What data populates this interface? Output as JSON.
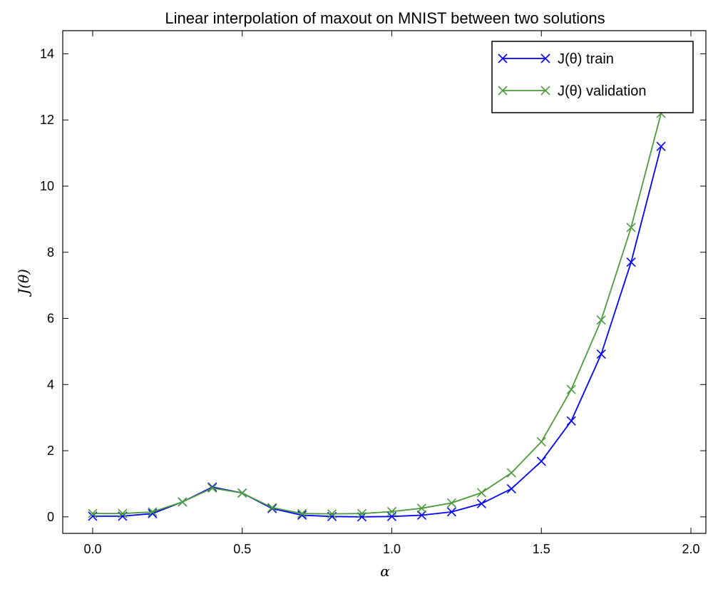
{
  "chart_data": {
    "type": "line",
    "title": "Linear interpolation of maxout on MNIST between two solutions",
    "xlabel": "α",
    "ylabel": "J(θ)",
    "xlim": [
      -0.1,
      2.05
    ],
    "ylim": [
      -0.5,
      14.7
    ],
    "xticks": [
      0.0,
      0.5,
      1.0,
      1.5,
      2.0
    ],
    "xtick_labels": [
      "0.0",
      "0.5",
      "1.0",
      "1.5",
      "2.0"
    ],
    "yticks": [
      0,
      2,
      4,
      6,
      8,
      10,
      12,
      14
    ],
    "ytick_labels": [
      "0",
      "2",
      "4",
      "6",
      "8",
      "10",
      "12",
      "14"
    ],
    "grid": false,
    "legend_position": "top-right",
    "x": [
      0.0,
      0.1,
      0.2,
      0.3,
      0.4,
      0.5,
      0.6,
      0.7,
      0.8,
      0.9,
      1.0,
      1.1,
      1.2,
      1.3,
      1.4,
      1.5,
      1.6,
      1.7,
      1.8,
      1.9
    ],
    "series": [
      {
        "name": "J(θ) train",
        "color": "#0000ff",
        "marker": "x",
        "values": [
          0.02,
          0.02,
          0.1,
          0.45,
          0.9,
          0.72,
          0.25,
          0.05,
          0.01,
          0.0,
          0.01,
          0.05,
          0.15,
          0.4,
          0.85,
          1.68,
          2.9,
          4.92,
          7.7,
          11.2
        ]
      },
      {
        "name": "J(θ) validation",
        "color": "#4c9a3c",
        "marker": "x",
        "values": [
          0.1,
          0.1,
          0.15,
          0.45,
          0.87,
          0.72,
          0.28,
          0.1,
          0.09,
          0.1,
          0.16,
          0.26,
          0.42,
          0.73,
          1.33,
          2.27,
          3.85,
          5.95,
          8.75,
          12.2
        ]
      }
    ]
  }
}
